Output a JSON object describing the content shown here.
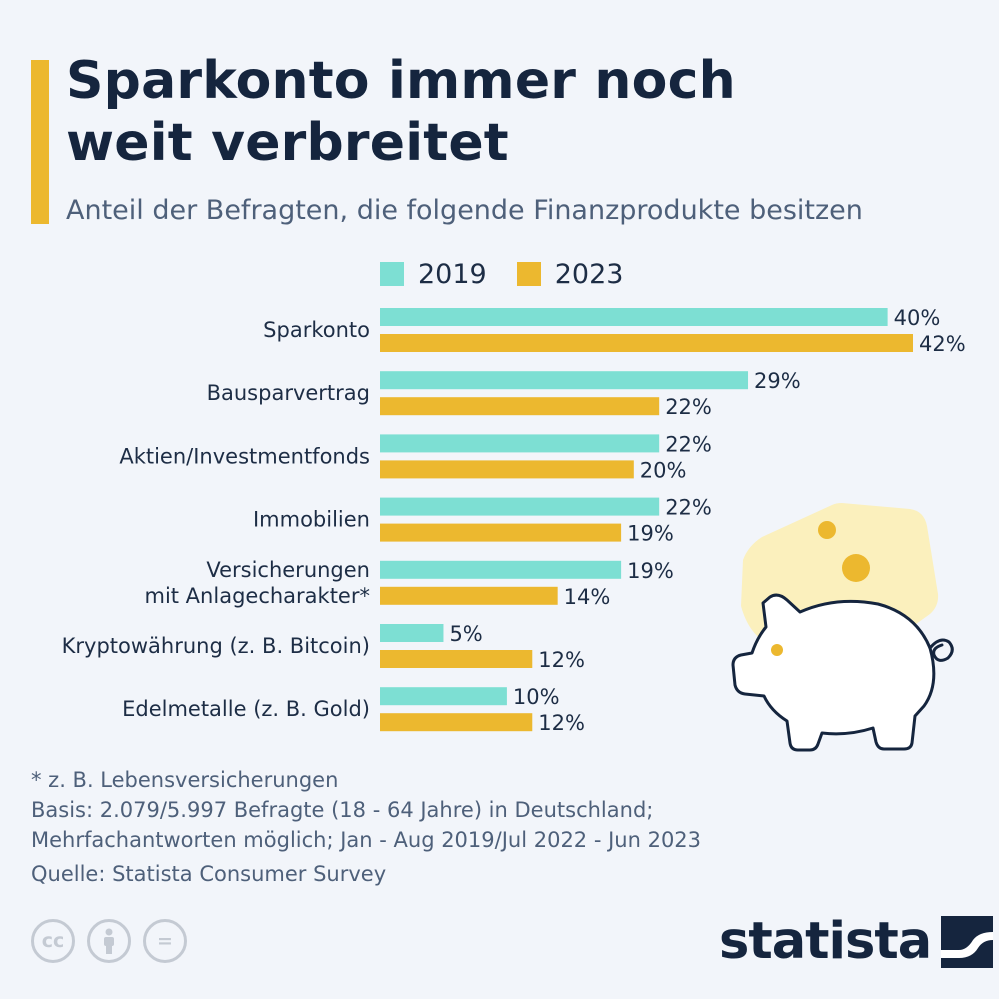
{
  "title_lines": [
    "Sparkonto immer noch",
    "weit verbreitet"
  ],
  "subtitle": "Anteil der Befragten, die folgende Finanzprodukte besitzen",
  "colors": {
    "s2019": "#7ddfd3",
    "s2023": "#ecb82f",
    "accent": "#ecb82f",
    "text": "#1d2d45"
  },
  "chart_data": {
    "type": "bar",
    "orientation": "horizontal",
    "categories": [
      [
        "Sparkonto"
      ],
      [
        "Bausparvertrag"
      ],
      [
        "Aktien/Investmentfonds"
      ],
      [
        "Immobilien"
      ],
      [
        "Versicherungen",
        "mit Anlagecharakter*"
      ],
      [
        "Kryptowährung (z. B. Bitcoin)"
      ],
      [
        "Edelmetalle (z. B. Gold)"
      ]
    ],
    "series": [
      {
        "name": "2019",
        "values": [
          40,
          29,
          22,
          22,
          19,
          5,
          10
        ],
        "labels": [
          "40%",
          "29%",
          "22%",
          "22%",
          "19%",
          "5%",
          "10%"
        ]
      },
      {
        "name": "2023",
        "values": [
          42,
          22,
          20,
          19,
          14,
          12,
          12
        ],
        "labels": [
          "42%",
          "22%",
          "20%",
          "19%",
          "14%",
          "12%",
          "12%"
        ]
      }
    ],
    "unit": "%",
    "xlim": [
      0,
      42
    ],
    "legend_position": "top",
    "grid": false
  },
  "footnotes": [
    "* z. B. Lebensversicherungen",
    "Basis: 2.079/5.997 Befragte (18 - 64 Jahre) in Deutschland;",
    "Mehrfachantworten möglich; Jan - Aug 2019/Jul 2022 - Jun 2023"
  ],
  "source": "Quelle: Statista Consumer Survey",
  "license_icons": [
    "cc-icon",
    "by-person-icon",
    "nd-equal-icon"
  ],
  "cc_glyphs": [
    "cc",
    "=",
    ""
  ],
  "brand": "statista",
  "illustration": "piggy-bank-icon"
}
